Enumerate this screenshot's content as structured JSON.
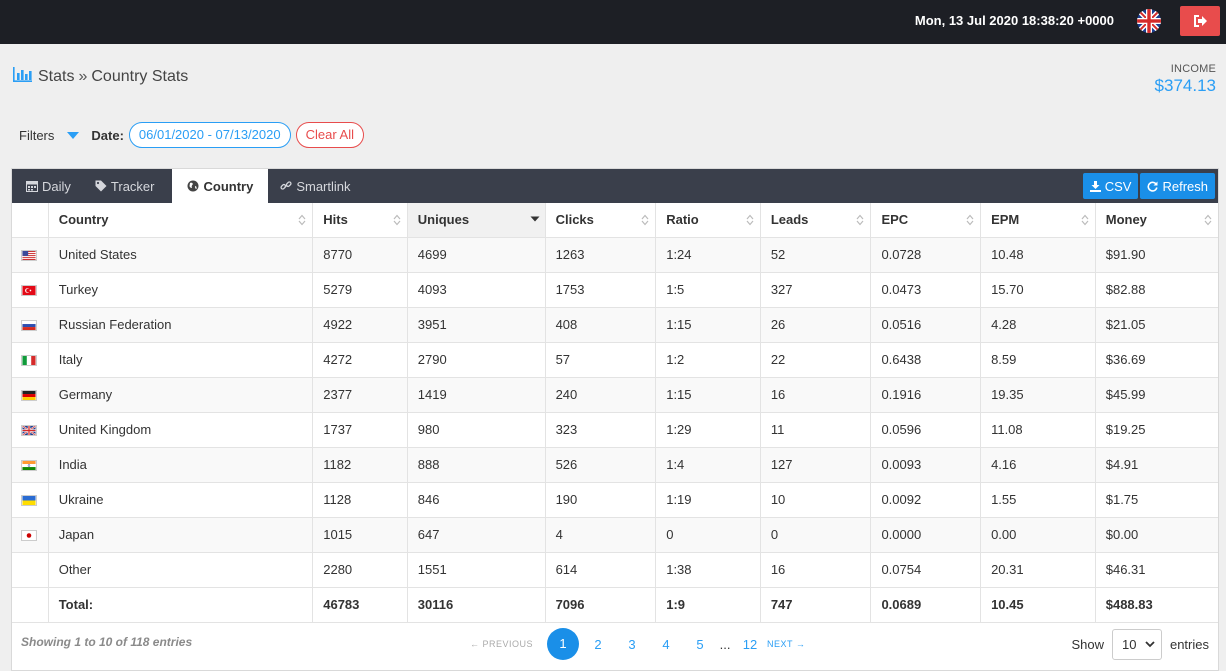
{
  "topbar": {
    "datetime": "Mon, 13 Jul 2020 18:38:20 +0000"
  },
  "breadcrumb": {
    "root": "Stats",
    "separator": "»",
    "current": "Country Stats"
  },
  "income": {
    "label": "INCOME",
    "value": "$374.13"
  },
  "filters": {
    "label": "Filters",
    "date_label": "Date:",
    "date_range": "06/01/2020 - 07/13/2020",
    "clear_label": "Clear All"
  },
  "tabs": [
    {
      "label": "Daily",
      "icon": "calendar-icon"
    },
    {
      "label": "Tracker",
      "icon": "tag-icon"
    },
    {
      "label": "Country",
      "icon": "globe-icon",
      "active": true
    },
    {
      "label": "Smartlink",
      "icon": "link-icon"
    }
  ],
  "buttons": {
    "csv": "CSV",
    "refresh": "Refresh"
  },
  "table": {
    "columns": [
      "Country",
      "Hits",
      "Uniques",
      "Clicks",
      "Ratio",
      "Leads",
      "EPC",
      "EPM",
      "Money"
    ],
    "sorted_column": "Uniques",
    "rows": [
      {
        "flag": "us",
        "cells": [
          "United States",
          "8770",
          "4699",
          "1263",
          "1:24",
          "52",
          "0.0728",
          "10.48",
          "$91.90"
        ]
      },
      {
        "flag": "tr",
        "cells": [
          "Turkey",
          "5279",
          "4093",
          "1753",
          "1:5",
          "327",
          "0.0473",
          "15.70",
          "$82.88"
        ]
      },
      {
        "flag": "ru",
        "cells": [
          "Russian Federation",
          "4922",
          "3951",
          "408",
          "1:15",
          "26",
          "0.0516",
          "4.28",
          "$21.05"
        ]
      },
      {
        "flag": "it",
        "cells": [
          "Italy",
          "4272",
          "2790",
          "57",
          "1:2",
          "22",
          "0.6438",
          "8.59",
          "$36.69"
        ]
      },
      {
        "flag": "de",
        "cells": [
          "Germany",
          "2377",
          "1419",
          "240",
          "1:15",
          "16",
          "0.1916",
          "19.35",
          "$45.99"
        ]
      },
      {
        "flag": "gb",
        "cells": [
          "United Kingdom",
          "1737",
          "980",
          "323",
          "1:29",
          "11",
          "0.0596",
          "11.08",
          "$19.25"
        ]
      },
      {
        "flag": "in",
        "cells": [
          "India",
          "1182",
          "888",
          "526",
          "1:4",
          "127",
          "0.0093",
          "4.16",
          "$4.91"
        ]
      },
      {
        "flag": "ua",
        "cells": [
          "Ukraine",
          "1128",
          "846",
          "190",
          "1:19",
          "10",
          "0.0092",
          "1.55",
          "$1.75"
        ]
      },
      {
        "flag": "jp",
        "cells": [
          "Japan",
          "1015",
          "647",
          "4",
          "0",
          "0",
          "0.0000",
          "0.00",
          "$0.00"
        ]
      },
      {
        "flag": "",
        "cells": [
          "Other",
          "2280",
          "1551",
          "614",
          "1:38",
          "16",
          "0.0754",
          "20.31",
          "$46.31"
        ]
      }
    ],
    "total": [
      "Total:",
      "46783",
      "30116",
      "7096",
      "1:9",
      "747",
      "0.0689",
      "10.45",
      "$488.83"
    ]
  },
  "footer": {
    "info": "Showing 1 to 10 of 118 entries",
    "previous": "← PREVIOUS",
    "next": "NEXT →",
    "pages": [
      "1",
      "2",
      "3",
      "4",
      "5"
    ],
    "ellipsis": "...",
    "last_page": "12",
    "current_page": "1",
    "show_label": "Show",
    "page_size": "10",
    "entries_label": "entries"
  }
}
